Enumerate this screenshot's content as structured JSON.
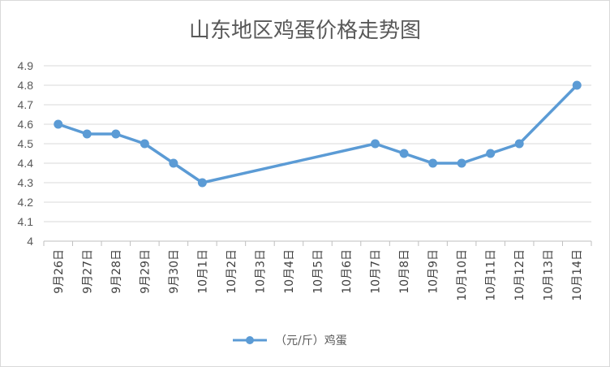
{
  "chart_data": {
    "type": "line",
    "title": "山东地区鸡蛋价格走势图",
    "xlabel": "",
    "ylabel": "",
    "categories": [
      "9月26日",
      "9月27日",
      "9月28日",
      "9月29日",
      "9月30日",
      "10月1日",
      "10月2日",
      "10月3日",
      "10月4日",
      "10月5日",
      "10月6日",
      "10月7日",
      "10月8日",
      "10月9日",
      "10月10日",
      "10月11日",
      "10月12日",
      "10月13日",
      "10月14日"
    ],
    "series": [
      {
        "name": "（元/斤）鸡蛋",
        "values": [
          4.6,
          4.55,
          4.55,
          4.5,
          4.4,
          4.3,
          null,
          null,
          null,
          null,
          null,
          4.5,
          4.45,
          4.4,
          4.4,
          4.45,
          4.5,
          null,
          4.8
        ],
        "color": "#5B9BD5",
        "gaps": "connected"
      }
    ],
    "ylim": [
      4,
      4.9
    ],
    "yticks": [
      "4",
      "4.1",
      "4.2",
      "4.3",
      "4.4",
      "4.5",
      "4.6",
      "4.7",
      "4.8",
      "4.9"
    ],
    "grid": true,
    "legend": "bottom"
  }
}
